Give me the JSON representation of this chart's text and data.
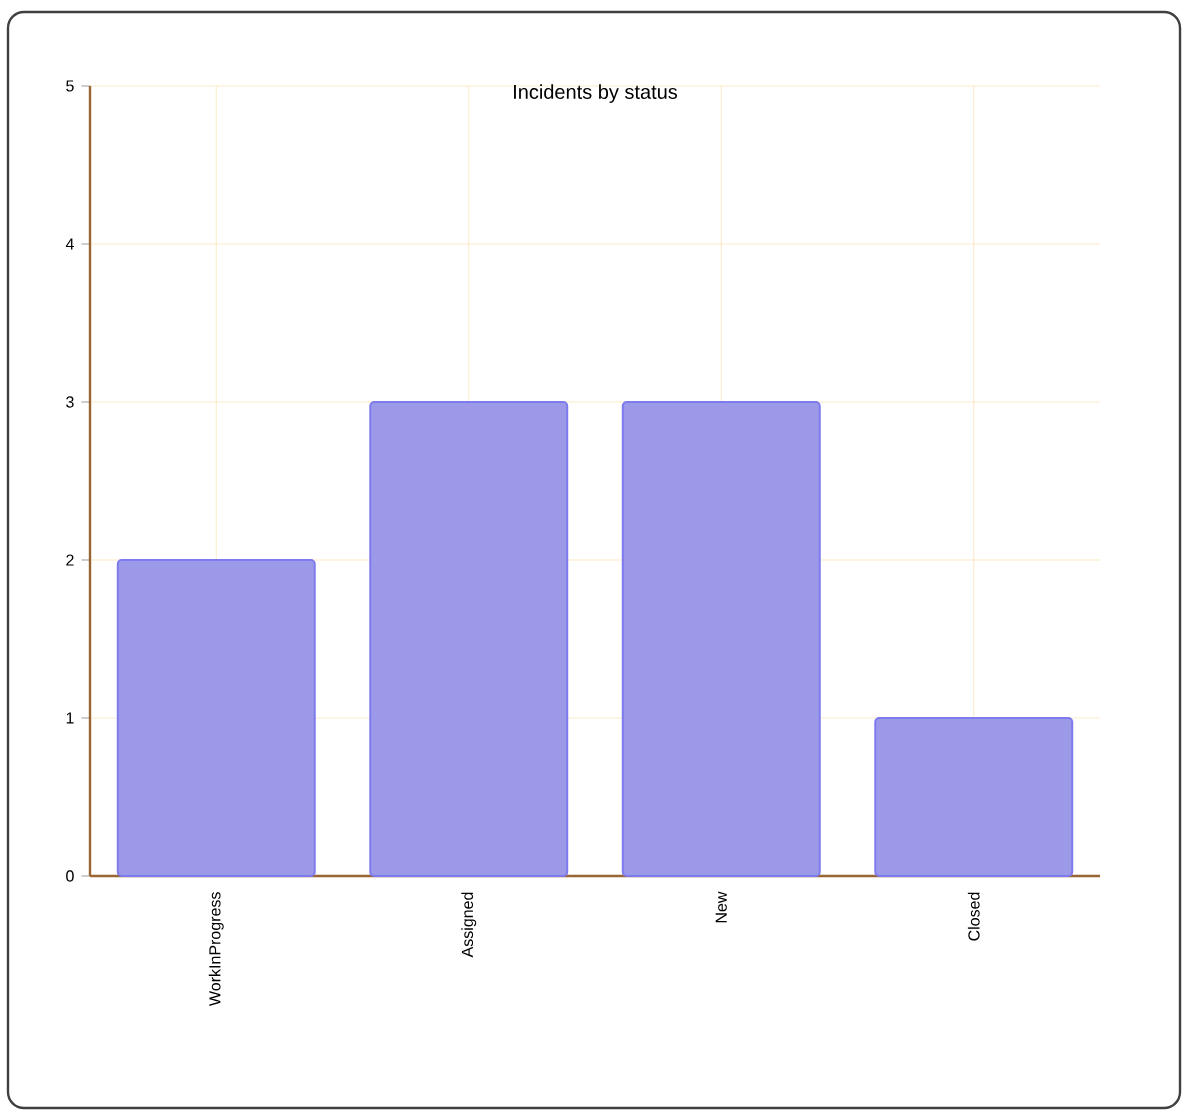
{
  "chart_data": {
    "type": "bar",
    "title": "Incidents by status",
    "categories": [
      "WorkInProgress",
      "Assigned",
      "New",
      "Closed"
    ],
    "values": [
      2,
      3,
      3,
      1
    ],
    "color": "#9c9ae8",
    "ylim": [
      0,
      5
    ],
    "yticks": [
      0,
      1,
      2,
      3,
      4,
      5
    ],
    "grid": true
  }
}
